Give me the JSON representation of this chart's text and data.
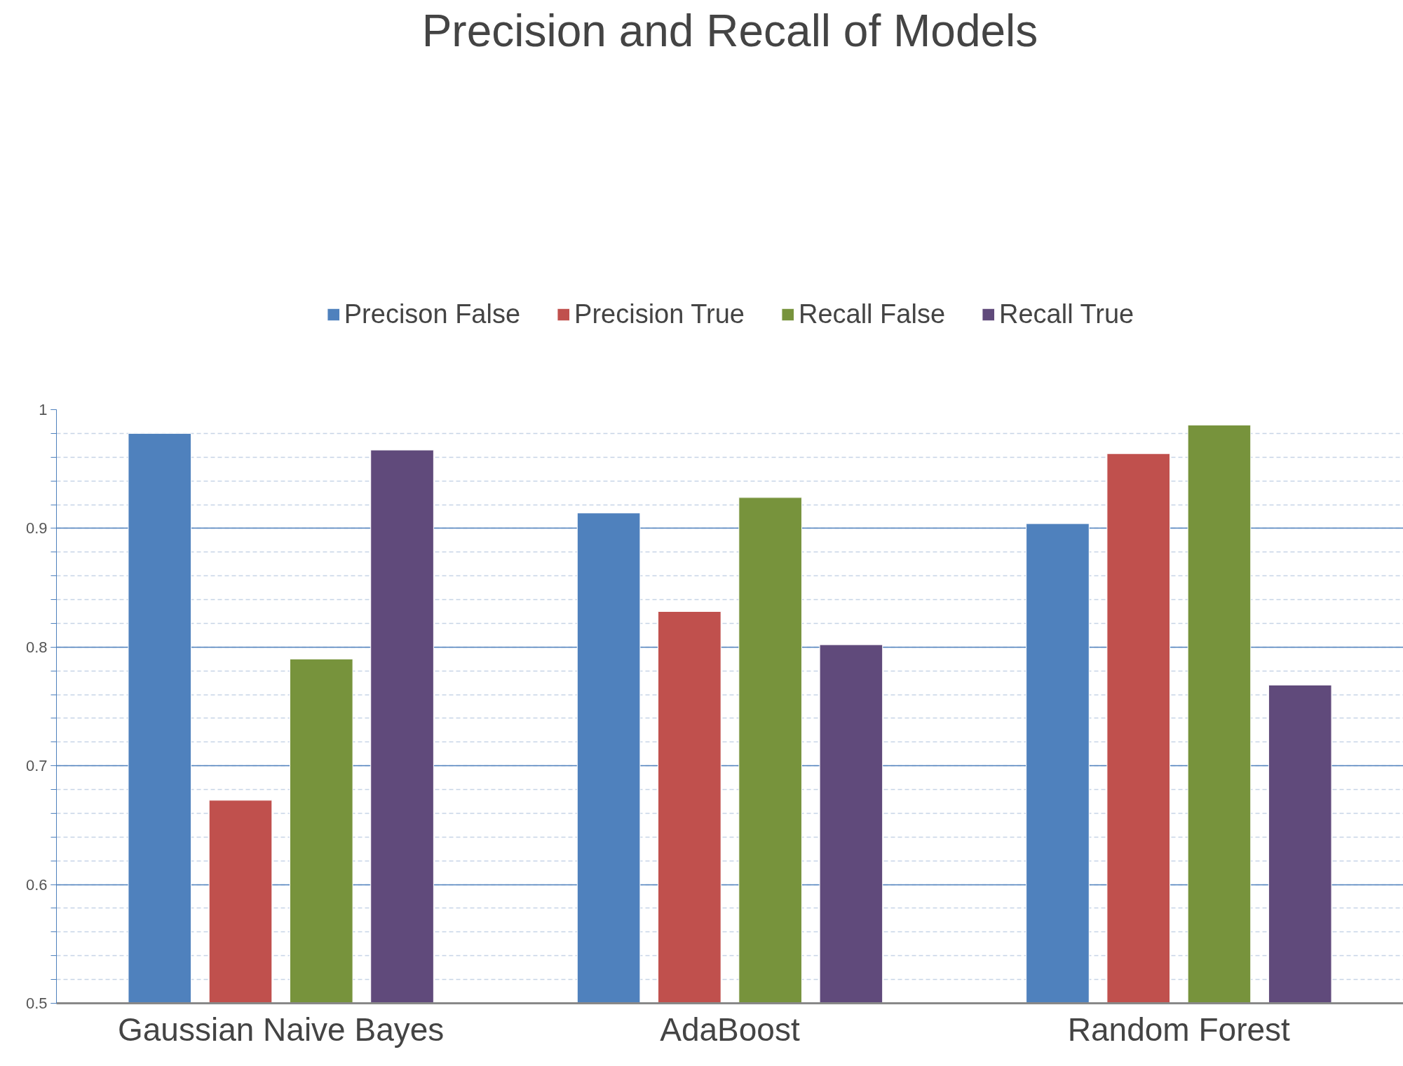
{
  "chart_data": {
    "type": "bar",
    "title": "Precision and Recall of Models",
    "categories": [
      "Gaussian Naive Bayes",
      "AdaBoost",
      "Random Forest"
    ],
    "series": [
      {
        "name": "Precison False",
        "color": "#4f81bd",
        "values": [
          0.98,
          0.913,
          0.904
        ]
      },
      {
        "name": "Precision True",
        "color": "#c0504d",
        "values": [
          0.671,
          0.83,
          0.963
        ]
      },
      {
        "name": "Recall False",
        "color": "#77933c",
        "values": [
          0.79,
          0.926,
          0.987
        ]
      },
      {
        "name": "Recall True",
        "color": "#604a7b",
        "values": [
          0.966,
          0.802,
          0.768
        ]
      }
    ],
    "ylim": [
      0.5,
      1
    ],
    "yticks": [
      0.5,
      0.6,
      0.7,
      0.8,
      0.9,
      1
    ],
    "grid": "y",
    "legend": "top"
  }
}
